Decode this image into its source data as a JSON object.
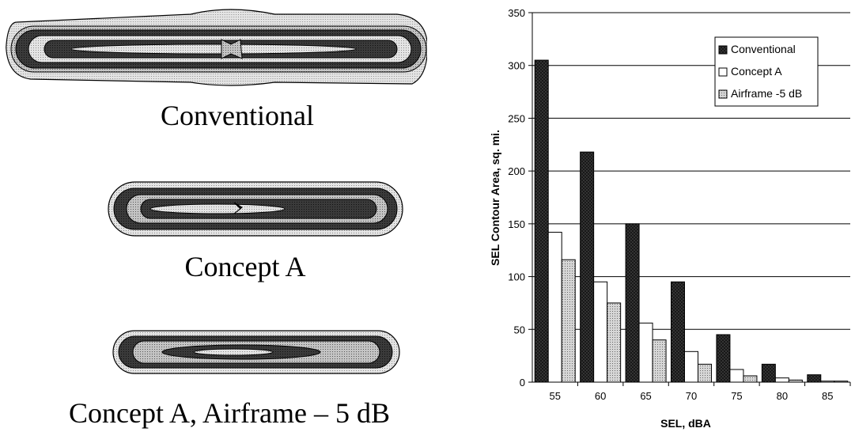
{
  "contours": [
    {
      "caption": "Conventional"
    },
    {
      "caption": "Concept A"
    },
    {
      "caption": "Concept A, Airframe – 5 dB"
    }
  ],
  "chart_data": {
    "type": "bar",
    "title": "",
    "xlabel": "SEL, dBA",
    "ylabel": "SEL Contour Area, sq. mi.",
    "categories": [
      "55",
      "60",
      "65",
      "70",
      "75",
      "80",
      "85"
    ],
    "ylim": [
      0,
      350
    ],
    "yticks": [
      0,
      50,
      100,
      150,
      200,
      250,
      300,
      350
    ],
    "grid": "horizontal",
    "legend_position": "top-right",
    "series": [
      {
        "name": "Conventional",
        "values": [
          305,
          218,
          150,
          95,
          45,
          17,
          7
        ],
        "fill": "#333333",
        "pattern": "dark-crosshatch"
      },
      {
        "name": "Concept A",
        "values": [
          142,
          95,
          56,
          29,
          12,
          4,
          1
        ],
        "fill": "#ffffff",
        "pattern": "none"
      },
      {
        "name": "Airframe -5 dB",
        "values": [
          116,
          75,
          40,
          17,
          6,
          2,
          1
        ],
        "fill": "#cfcfcf",
        "pattern": "light-dots"
      }
    ]
  }
}
